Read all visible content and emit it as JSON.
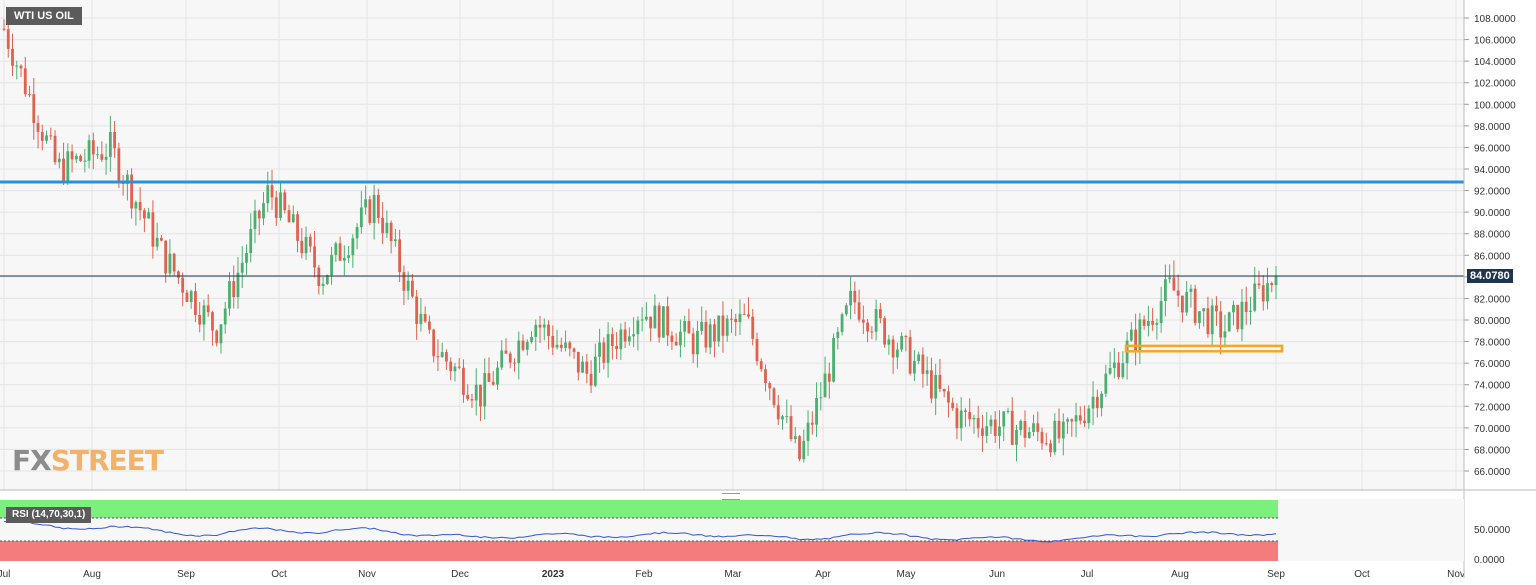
{
  "header": {
    "symbol": "WTI US OIL"
  },
  "current_price": {
    "label": "84.0780",
    "value": 84.078,
    "color": "#1e3550"
  },
  "watermark": {
    "part1": "FX",
    "part2": "STREET"
  },
  "rsi": {
    "label": "RSI (14,70,30,1)",
    "y_ticks": [
      "50.0000",
      "0.0000"
    ]
  },
  "colors": {
    "up": "#4caf70",
    "down": "#e0614e",
    "resistance_line": "#2196e0",
    "support_zone": "#f5a623",
    "rsi_line": "#3355cc",
    "rsi_overbought": "#7cf07c",
    "rsi_oversold": "#f47c7c"
  },
  "chart_data": {
    "type": "candlestick",
    "x_tick_labels": [
      "Jul",
      "Aug",
      "Sep",
      "Oct",
      "Nov",
      "Dec",
      "2023",
      "Feb",
      "Mar",
      "Apr",
      "May",
      "Jun",
      "Jul",
      "Aug",
      "Sep",
      "Oct",
      "Nov"
    ],
    "y_tick_labels": [
      "108.0000",
      "106.0000",
      "104.0000",
      "102.0000",
      "100.0000",
      "98.0000",
      "96.0000",
      "94.0000",
      "92.0000",
      "90.0000",
      "88.0000",
      "86.0000",
      "84.0000",
      "82.0000",
      "80.0000",
      "78.0000",
      "76.0000",
      "74.0000",
      "72.0000",
      "70.0000",
      "68.0000",
      "66.0000"
    ],
    "y_range": [
      64,
      109
    ],
    "grid": true,
    "resistance_level": 92.8,
    "support_zone": {
      "low": 77.1,
      "high": 77.6,
      "from": "mid-Jul 2023",
      "to": "end-Aug 2023"
    },
    "close_path": [
      {
        "date": "Jul 2022",
        "close": 107
      },
      {
        "date": "Aug 2022",
        "close": 94
      },
      {
        "date": "late Aug 2022",
        "close": 96
      },
      {
        "date": "Sep 2022",
        "close": 86
      },
      {
        "date": "late Sep 2022",
        "close": 79
      },
      {
        "date": "early Oct 2022",
        "close": 92
      },
      {
        "date": "mid Oct 2022",
        "close": 84
      },
      {
        "date": "Nov 2022",
        "close": 91
      },
      {
        "date": "late Nov 2022",
        "close": 78
      },
      {
        "date": "Dec 2022",
        "close": 73
      },
      {
        "date": "early Jan 2023",
        "close": 80
      },
      {
        "date": "mid Jan 2023",
        "close": 75
      },
      {
        "date": "late Jan 2023",
        "close": 81
      },
      {
        "date": "Feb 2023",
        "close": 78
      },
      {
        "date": "early Mar 2023",
        "close": 80
      },
      {
        "date": "mid Mar 2023",
        "close": 67
      },
      {
        "date": "Apr 2023",
        "close": 82
      },
      {
        "date": "late Apr 2023",
        "close": 77
      },
      {
        "date": "May 2023",
        "close": 71
      },
      {
        "date": "Jun 2023",
        "close": 70
      },
      {
        "date": "late Jun 2023",
        "close": 69
      },
      {
        "date": "Jul 2023",
        "close": 76
      },
      {
        "date": "early Aug 2023",
        "close": 83
      },
      {
        "date": "late Aug 2023",
        "close": 79
      },
      {
        "date": "Sep 2023",
        "close": 84.08
      }
    ]
  }
}
